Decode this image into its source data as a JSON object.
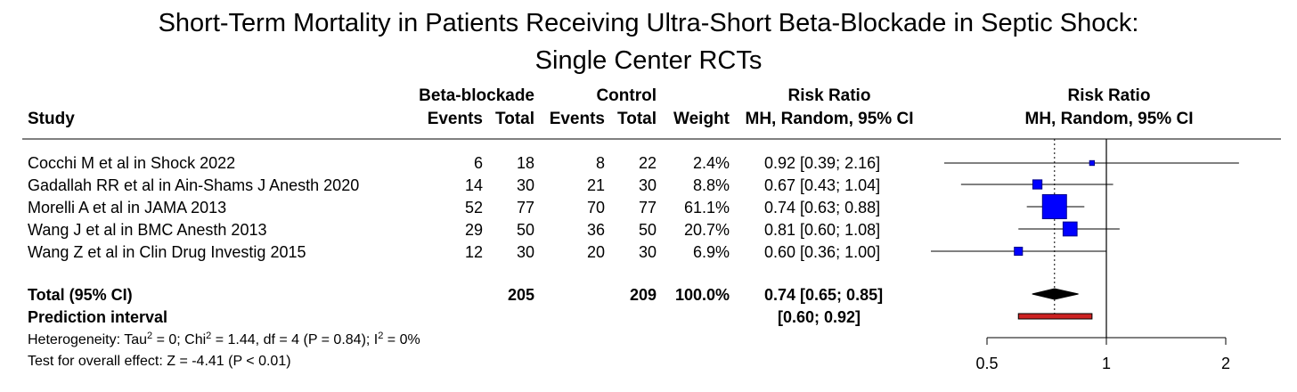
{
  "title": {
    "line1": "Short-Term Mortality in Patients Receiving Ultra-Short Beta-Blockade in Septic Shock:",
    "line2": "Single Center RCTs"
  },
  "headers": {
    "group_treatment": "Beta-blockade",
    "group_control": "Control",
    "group_rr": "Risk Ratio",
    "group_plot": "Risk Ratio",
    "study": "Study",
    "events": "Events",
    "total": "Total",
    "events_c": "Events",
    "total_c": "Total",
    "weight": "Weight",
    "method": "MH, Random, 95% CI",
    "plot_method": "MH, Random, 95% CI"
  },
  "studies": [
    {
      "name": "Cocchi M et al in Shock 2022",
      "e_t": "6",
      "n_t": "18",
      "e_c": "8",
      "n_c": "22",
      "weight": "2.4%",
      "ci_text": "0.92 [0.39; 2.16]"
    },
    {
      "name": "Gadallah RR et al in Ain-Shams J Anesth 2020",
      "e_t": "14",
      "n_t": "30",
      "e_c": "21",
      "n_c": "30",
      "weight": "8.8%",
      "ci_text": "0.67 [0.43; 1.04]"
    },
    {
      "name": "Morelli A et al in JAMA 2013",
      "e_t": "52",
      "n_t": "77",
      "e_c": "70",
      "n_c": "77",
      "weight": "61.1%",
      "ci_text": "0.74 [0.63; 0.88]"
    },
    {
      "name": "Wang J et al in BMC Anesth 2013",
      "e_t": "29",
      "n_t": "50",
      "e_c": "36",
      "n_c": "50",
      "weight": "20.7%",
      "ci_text": "0.81 [0.60; 1.08]"
    },
    {
      "name": "Wang Z et al in Clin Drug Investig 2015",
      "e_t": "12",
      "n_t": "30",
      "e_c": "20",
      "n_c": "30",
      "weight": "6.9%",
      "ci_text": "0.60 [0.36; 1.00]"
    }
  ],
  "total": {
    "label": "Total (95% CI)",
    "n_t": "205",
    "n_c": "209",
    "weight": "100.0%",
    "ci_text": "0.74 [0.65; 0.85]"
  },
  "prediction": {
    "label": "Prediction interval",
    "ci_text": "[0.60; 0.92]"
  },
  "heterogeneity": {
    "p1": "Heterogeneity: Tau",
    "p2": " = 0; Chi",
    "p3": " = 1.44, df = 4 (P = 0.84); I",
    "p4": " = 0%",
    "sup": "2"
  },
  "overall_effect": "Test for overall effect: Z = -4.41 (P < 0.01)",
  "colors": {
    "square": "#0000ff",
    "square_edge": "#00008b",
    "diamond": "#000000",
    "prediction": "#cc2222",
    "line": "#000000"
  },
  "chart_data": {
    "type": "forest",
    "scale": "log",
    "xlim": [
      0.5,
      2
    ],
    "ticks": [
      {
        "value": 0.5,
        "label": "0.5"
      },
      {
        "value": 1,
        "label": "1"
      },
      {
        "value": 2,
        "label": "2"
      }
    ],
    "null_line": 1,
    "pooled_line": 0.74,
    "studies": [
      {
        "rr": 0.92,
        "lower": 0.39,
        "upper": 2.16,
        "weight": 2.4
      },
      {
        "rr": 0.67,
        "lower": 0.43,
        "upper": 1.04,
        "weight": 8.8
      },
      {
        "rr": 0.74,
        "lower": 0.63,
        "upper": 0.88,
        "weight": 61.1
      },
      {
        "rr": 0.81,
        "lower": 0.6,
        "upper": 1.08,
        "weight": 20.7
      },
      {
        "rr": 0.6,
        "lower": 0.36,
        "upper": 1.0,
        "weight": 6.9
      }
    ],
    "pooled": {
      "rr": 0.74,
      "lower": 0.65,
      "upper": 0.85
    },
    "prediction_interval": {
      "lower": 0.6,
      "upper": 0.92
    }
  }
}
